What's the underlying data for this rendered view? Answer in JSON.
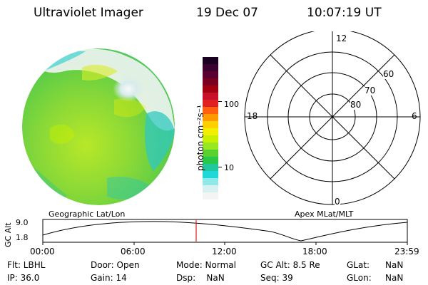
{
  "header": {
    "instrument": "Ultraviolet Imager",
    "date": "19 Dec 07",
    "time": "10:07:19 UT"
  },
  "colorbar": {
    "unit_label": "photon cm⁻²s⁻¹",
    "ticks": [
      "100",
      "10"
    ],
    "colors": [
      "#1a0020",
      "#3a0030",
      "#5a0030",
      "#7a0020",
      "#a00010",
      "#c8102a",
      "#e02020",
      "#ff6010",
      "#ff9a00",
      "#ffd000",
      "#f0f000",
      "#c8f000",
      "#98e820",
      "#58d030",
      "#28c848",
      "#20c8a0",
      "#20d8d8",
      "#90e8e8",
      "#d8f0f0",
      "#f4f4f4"
    ]
  },
  "polar_grid": {
    "labels": {
      "top": "12",
      "left": "18",
      "right": "6",
      "bottom": "0",
      "lat60": "60",
      "lat70": "70",
      "lat80": "80"
    }
  },
  "timeline": {
    "left_label": "Geographic Lat/Lon",
    "right_label": "Apex MLat/MLT",
    "y_axis_label": "GC Alt",
    "y_ticks": [
      "9.0",
      "1.8"
    ],
    "x_ticks": [
      "00:00",
      "06:00",
      "12:00",
      "18:00",
      "23:59"
    ],
    "marker_color": "#d02020"
  },
  "status": {
    "flt": "Flt: LBHL",
    "ip": "IP: 36.0",
    "door": "Door: Open",
    "gain": "Gain: 14",
    "mode": "Mode: Normal",
    "dsp": "Dsp:    NaN",
    "gc_alt": "GC Alt: 8.5 Re",
    "seq": "Seq: 39",
    "glat_label": "GLat:",
    "glat_value": "NaN",
    "glon_label": "GLon:",
    "glon_value": "NaN"
  }
}
